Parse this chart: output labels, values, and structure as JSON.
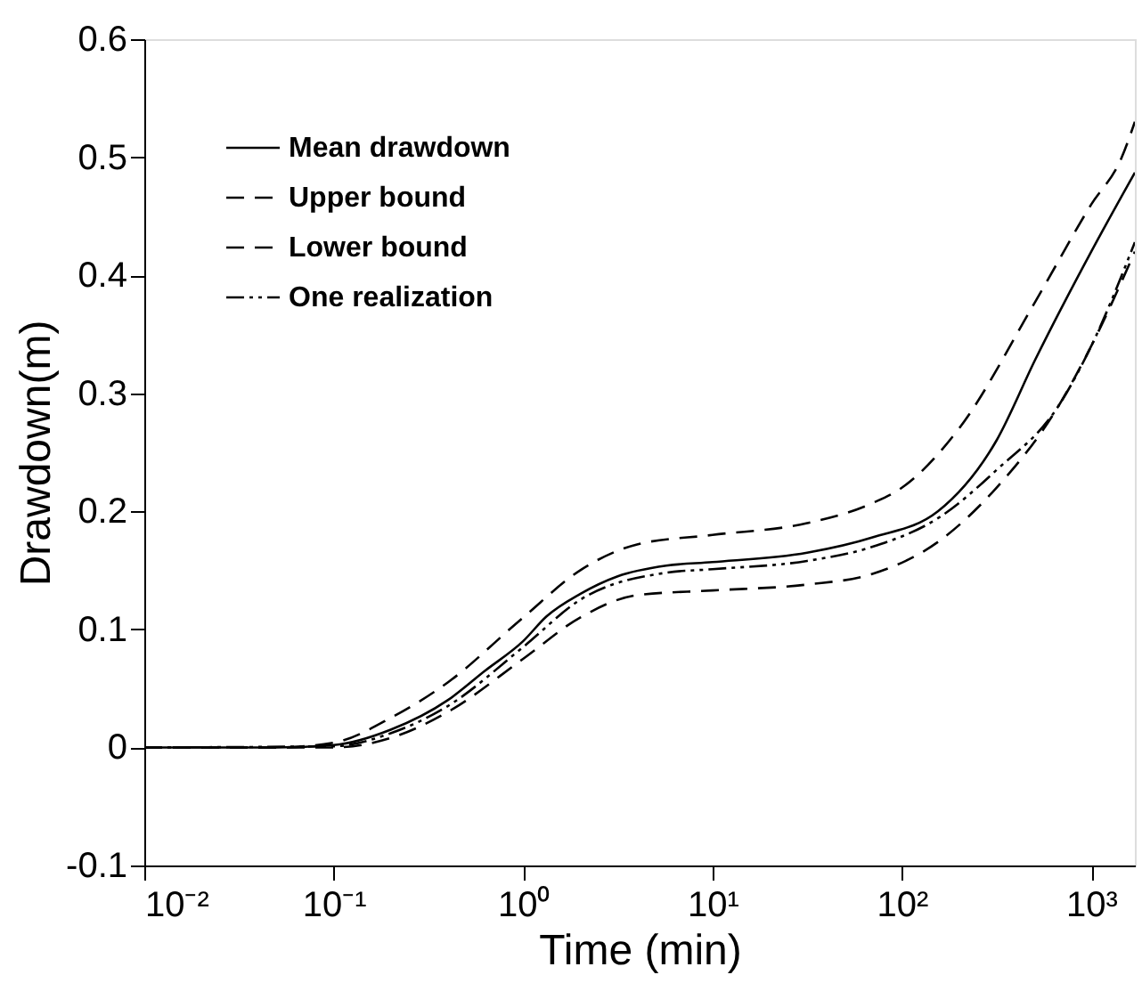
{
  "chart_data": {
    "type": "line",
    "xlabel": "Time (min)",
    "ylabel": "Drawdown(m)",
    "log": "x",
    "grid": false,
    "legend": "top left",
    "xlim": [
      0.01,
      1700
    ],
    "ylim": [
      -0.1,
      0.6
    ],
    "xticks": [
      {
        "value": 0.01,
        "label": "10⁻²"
      },
      {
        "value": 0.1,
        "label": "10⁻¹"
      },
      {
        "value": 1,
        "label": "10⁰"
      },
      {
        "value": 10,
        "label": "10¹"
      },
      {
        "value": 100,
        "label": "10²"
      },
      {
        "value": 1000,
        "label": "10³"
      }
    ],
    "yticks": [
      -0.1,
      0,
      0.1,
      0.2,
      0.3,
      0.4,
      0.5,
      0.6
    ],
    "series": [
      {
        "name": "Mean drawdown",
        "color": "#000000",
        "line_style": "solid",
        "x": [
          0.01,
          0.05,
          0.1,
          0.2,
          0.4,
          0.63,
          1,
          1.33,
          2,
          3.16,
          5.7,
          10,
          31.6,
          70,
          155,
          316,
          508,
          1000,
          1700
        ],
        "values": [
          0,
          0,
          0.002,
          0.015,
          0.04,
          0.065,
          0.09,
          0.111,
          0.13,
          0.145,
          0.154,
          0.157,
          0.165,
          0.178,
          0.2,
          0.26,
          0.329,
          0.42,
          0.487
        ]
      },
      {
        "name": "Upper bound",
        "color": "#000000",
        "line_style": "dashed",
        "x": [
          0.01,
          0.05,
          0.1,
          0.2,
          0.4,
          1,
          2,
          4,
          10,
          31.6,
          70,
          100,
          200,
          508,
          1000,
          1450,
          1700
        ],
        "values": [
          0,
          0,
          0.004,
          0.025,
          0.055,
          0.11,
          0.15,
          0.172,
          0.18,
          0.19,
          0.207,
          0.22,
          0.27,
          0.378,
          0.46,
          0.5,
          0.53
        ]
      },
      {
        "name": "Lower bound",
        "color": "#000000",
        "line_style": "dashed",
        "x": [
          0.01,
          0.1,
          0.2,
          0.4,
          1,
          2,
          4,
          10,
          31.6,
          70,
          158,
          316,
          676,
          1000,
          1700
        ],
        "values": [
          0,
          0,
          0.008,
          0.03,
          0.075,
          0.11,
          0.129,
          0.133,
          0.138,
          0.147,
          0.175,
          0.22,
          0.29,
          0.34,
          0.42
        ]
      },
      {
        "name": "One realization",
        "color": "#000000",
        "line_style": "dotted",
        "x": [
          0.01,
          0.1,
          0.2,
          0.4,
          1,
          2,
          5.7,
          10,
          31.6,
          70,
          158,
          316,
          676,
          1000,
          1700
        ],
        "values": [
          0,
          0.001,
          0.012,
          0.035,
          0.085,
          0.125,
          0.148,
          0.151,
          0.158,
          0.17,
          0.195,
          0.235,
          0.29,
          0.34,
          0.428
        ]
      }
    ]
  }
}
